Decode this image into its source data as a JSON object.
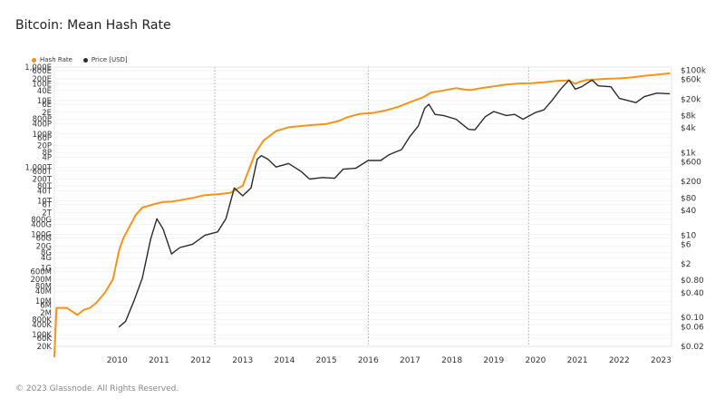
{
  "title": "Bitcoin: Mean Hash Rate",
  "footer": "© 2023 Glassnode. All Rights Reserved.",
  "legend": [
    {
      "name": "Hash Rate",
      "color": "#f7931a"
    },
    {
      "name": "Price [USD]",
      "color": "#2b2b2b"
    }
  ],
  "chart_data": {
    "type": "line",
    "title": "Bitcoin: Mean Hash Rate",
    "xlim": [
      "2009-01",
      "2023-10"
    ],
    "left_axis": {
      "scale": "log",
      "tick_labels": [
        "1,000E",
        "600E",
        "200E",
        "100E",
        "40E",
        "10E",
        "6E",
        "2E",
        "800P",
        "400P",
        "100P",
        "60P",
        "20P",
        "8P",
        "4P",
        "1,000T",
        "600T",
        "200T",
        "80T",
        "40T",
        "10T",
        "6T",
        "2T",
        "800G",
        "400G",
        "100G",
        "60G",
        "20G",
        "8G",
        "4G",
        "1G",
        "600M",
        "200M",
        "80M",
        "40M",
        "10M",
        "6M",
        "2M",
        "800K",
        "400K",
        "100K",
        "60K",
        "20K"
      ]
    },
    "right_axis": {
      "scale": "log",
      "tick_labels": [
        "$100k",
        "$60k",
        "$20k",
        "$8k",
        "$4k",
        "$1k",
        "$600",
        "$200",
        "$80",
        "$40",
        "$10",
        "$6",
        "$2",
        "$0.80",
        "$0.40",
        "$0.10",
        "$0.06",
        "$0.02"
      ]
    },
    "x_tick_labels": [
      "2010",
      "2011",
      "2012",
      "2013",
      "2014",
      "2015",
      "2016",
      "2017",
      "2018",
      "2019",
      "2020",
      "2021",
      "2022",
      "2023"
    ],
    "halving_lines": [
      "2012-11",
      "2016-07",
      "2020-05"
    ],
    "series": [
      {
        "name": "Hash Rate",
        "color": "#f7931a",
        "unit": "H/s",
        "x": [
          2009.0,
          2009.05,
          2009.3,
          2009.55,
          2009.7,
          2009.85,
          2010.0,
          2010.2,
          2010.4,
          2010.55,
          2010.65,
          2010.8,
          2010.95,
          2011.1,
          2011.25,
          2011.35,
          2011.45,
          2011.6,
          2011.8,
          2012.0,
          2012.3,
          2012.6,
          2012.9,
          2013.2,
          2013.5,
          2013.8,
          2014.0,
          2014.3,
          2014.6,
          2014.9,
          2015.2,
          2015.5,
          2015.8,
          2016.0,
          2016.3,
          2016.6,
          2016.9,
          2017.2,
          2017.5,
          2017.8,
          2018.0,
          2018.3,
          2018.6,
          2018.8,
          2018.95,
          2019.2,
          2019.5,
          2019.8,
          2020.1,
          2020.4,
          2020.7,
          2021.0,
          2021.3,
          2021.45,
          2021.55,
          2021.7,
          2021.9,
          2022.2,
          2022.5,
          2022.8,
          2023.1,
          2023.4,
          2023.7
        ],
        "y": [
          5000.0,
          4000000.0,
          4000000.0,
          1500000.0,
          3000000.0,
          4000000.0,
          8000000.0,
          30000000.0,
          200000000.0,
          12000000000.0,
          60000000000.0,
          300000000000.0,
          1500000000000.0,
          4000000000000.0,
          5000000000000.0,
          6000000000000.0,
          7000000000000.0,
          8500000000000.0,
          9000000000000.0,
          11000000000000.0,
          15000000000000.0,
          22000000000000.0,
          25000000000000.0,
          30000000000000.0,
          80000000000000.0,
          7000000000000000.0,
          4e+16,
          1.5e+17,
          2.5e+17,
          3e+17,
          3.5e+17,
          4e+17,
          6e+17,
          1e+18,
          1.6e+18,
          1.8e+18,
          2.5e+18,
          4e+18,
          8e+18,
          1.5e+19,
          3e+19,
          4e+19,
          5.5e+19,
          4.5e+19,
          4.2e+19,
          5.5e+19,
          7e+19,
          9e+19,
          1.05e+20,
          1.1e+20,
          1.25e+20,
          1.5e+20,
          1.6e+20,
          1e+20,
          1.3e+20,
          1.65e+20,
          1.8e+20,
          2e+20,
          2.1e+20,
          2.4e+20,
          3e+20,
          3.5e+20,
          4.2e+20
        ]
      },
      {
        "name": "Price [USD]",
        "color": "#2b2b2b",
        "unit": "USD",
        "x": [
          2010.55,
          2010.7,
          2010.9,
          2011.1,
          2011.3,
          2011.45,
          2011.6,
          2011.8,
          2012.0,
          2012.3,
          2012.6,
          2012.9,
          2013.1,
          2013.3,
          2013.5,
          2013.7,
          2013.85,
          2013.95,
          2014.1,
          2014.3,
          2014.6,
          2014.9,
          2015.1,
          2015.4,
          2015.7,
          2015.9,
          2016.2,
          2016.5,
          2016.8,
          2017.0,
          2017.3,
          2017.5,
          2017.7,
          2017.85,
          2017.95,
          2018.1,
          2018.3,
          2018.6,
          2018.9,
          2019.05,
          2019.3,
          2019.5,
          2019.8,
          2020.0,
          2020.2,
          2020.5,
          2020.7,
          2020.9,
          2021.1,
          2021.3,
          2021.45,
          2021.6,
          2021.85,
          2022.0,
          2022.3,
          2022.5,
          2022.9,
          2023.1,
          2023.4,
          2023.7
        ],
        "y": [
          0.06,
          0.08,
          0.25,
          0.9,
          8,
          25,
          14,
          3.5,
          5,
          6,
          10,
          12,
          25,
          140,
          90,
          140,
          700,
          850,
          700,
          450,
          550,
          350,
          230,
          250,
          240,
          400,
          420,
          650,
          650,
          900,
          1200,
          2500,
          4500,
          12000,
          15000,
          8500,
          8000,
          6500,
          3700,
          3600,
          7500,
          10000,
          8000,
          8500,
          6500,
          9500,
          11000,
          19000,
          35000,
          58000,
          35000,
          40000,
          58000,
          42000,
          40000,
          21000,
          16500,
          23000,
          28000,
          27000
        ]
      }
    ]
  }
}
